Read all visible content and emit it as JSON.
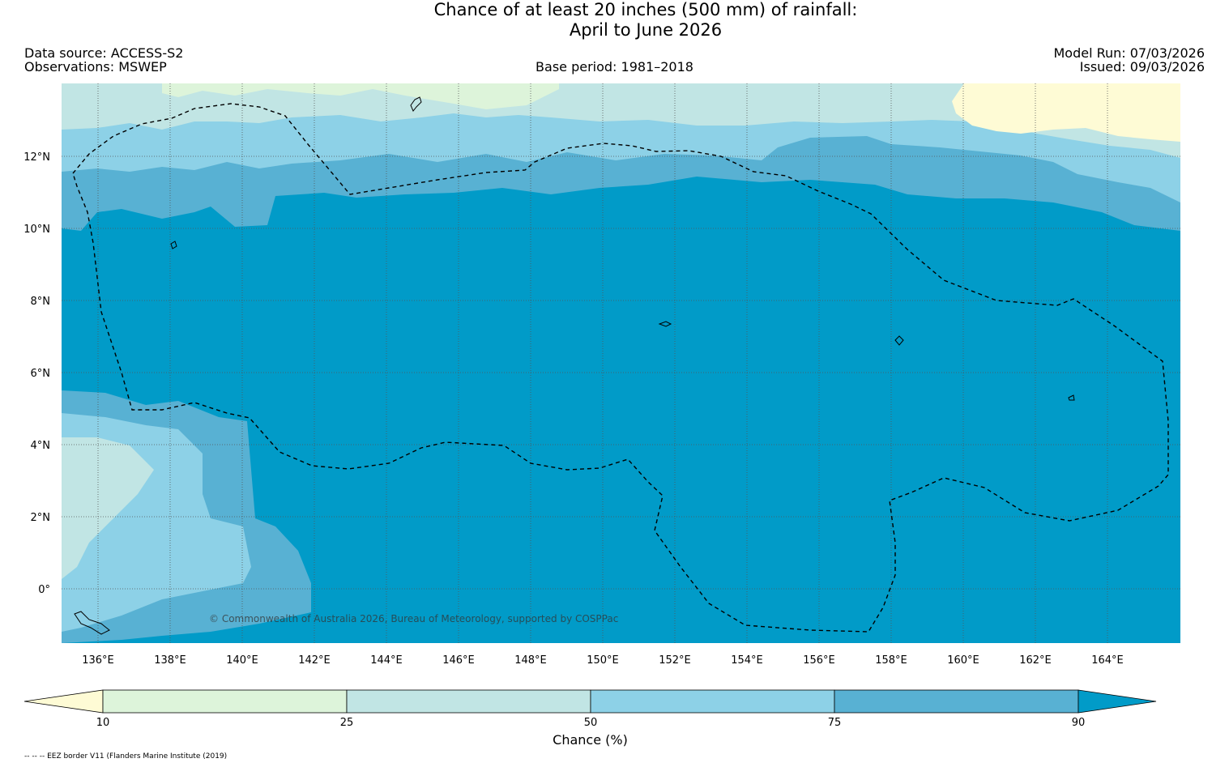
{
  "title_line1": "Chance of at least 20 inches (500  mm) of rainfall:",
  "title_line2": "April to June 2026",
  "data_source": "Data source: ACCESS-S2",
  "observations": "Observations: MSWEP",
  "base_period": "Base period: 1981–2018",
  "model_run": "Model Run: 07/03/2026",
  "issued": "Issued: 09/03/2026",
  "copyright": "© Commonwealth of Australia 2026, Bureau of Meteorology, supported by COSPPac",
  "footnote": "-- -- -- EEZ border V11 (Flanders Marine Institute (2019)",
  "map": {
    "lon_labels": [
      "136°E",
      "138°E",
      "140°E",
      "142°E",
      "144°E",
      "146°E",
      "148°E",
      "150°E",
      "152°E",
      "154°E",
      "156°E",
      "158°E",
      "160°E",
      "162°E",
      "164°E"
    ],
    "lat_labels": [
      "12°N",
      "10°N",
      "8°N",
      "6°N",
      "4°N",
      "2°N",
      "0°"
    ]
  },
  "colorbar": {
    "title": "Chance (%)",
    "ticks": [
      "10",
      "25",
      "50",
      "75",
      "90"
    ],
    "colors": {
      "lt10": "#fefbd5",
      "c10_25": "#ddf4da",
      "c25_50": "#c1e5e4",
      "c50_75": "#8dd1e7",
      "c75_90": "#58b1d3",
      "gt90": "#019bc8"
    }
  }
}
